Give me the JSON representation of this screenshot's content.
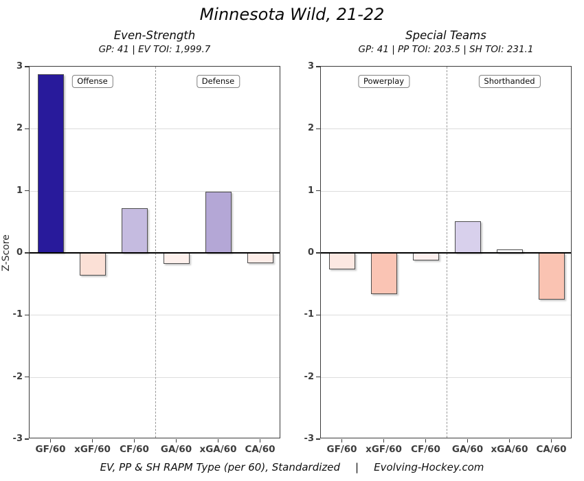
{
  "title": "Minnesota Wild, 21-22",
  "ylabel": "Z-Score",
  "footer": {
    "left": "EV, PP & SH RAPM Type (per 60), Standardized",
    "separator": "|",
    "right": "Evolving-Hockey.com"
  },
  "style_colors": {
    "positive_strong": "#281A9B",
    "positive_mid": "#B4A7D6",
    "positive_light": "#D8D0EC",
    "negative_mid": "#FAC4B4",
    "negative_light": "#FBE0D6",
    "grid": "#DCDCDC",
    "axis": "#3A3A3A",
    "bar_outline": "#4D4D4D",
    "tick_text": "#3D3D3D"
  },
  "chart_data": [
    {
      "type": "bar",
      "title": "Even-Strength",
      "subtitle": "GP: 41 | EV TOI: 1,999.7",
      "categories": [
        "GF/60",
        "xGF/60",
        "CF/60",
        "GA/60",
        "xGA/60",
        "CA/60"
      ],
      "values": [
        2.88,
        -0.37,
        0.72,
        -0.18,
        0.98,
        -0.17
      ],
      "bar_colors": [
        "#281A9B",
        "#FBE0D6",
        "#C5BBE0",
        "#FDF0EC",
        "#B4A7D6",
        "#FDEDE8"
      ],
      "section_labels": [
        "Offense",
        "Defense"
      ],
      "xlabel": "",
      "ylabel": "Z-Score",
      "ylim": [
        -3,
        3
      ],
      "yticks": [
        3,
        2,
        1,
        0,
        -1,
        -2,
        -3
      ],
      "grid": "horizontal gridlines at integers, dashed vertical divider between CF/60 and GA/60",
      "legend": "none"
    },
    {
      "type": "bar",
      "title": "Special Teams",
      "subtitle": "GP: 41 | PP TOI: 203.5 | SH TOI: 231.1",
      "categories": [
        "GF/60",
        "xGF/60",
        "CF/60",
        "GA/60",
        "xGA/60",
        "CA/60"
      ],
      "values": [
        -0.27,
        -0.66,
        -0.12,
        0.51,
        0.05,
        -0.75
      ],
      "bar_colors": [
        "#FCE8E2",
        "#FAC4B4",
        "#FDF0EE",
        "#D8D0EC",
        "#FAFAFC",
        "#FAC3B2"
      ],
      "section_labels": [
        "Powerplay",
        "Shorthanded"
      ],
      "xlabel": "",
      "ylabel": "Z-Score",
      "ylim": [
        -3,
        3
      ],
      "yticks": [
        3,
        2,
        1,
        0,
        -1,
        -2,
        -3
      ],
      "grid": "horizontal gridlines at integers, dashed vertical divider between CF/60 and GA/60",
      "legend": "none"
    }
  ]
}
